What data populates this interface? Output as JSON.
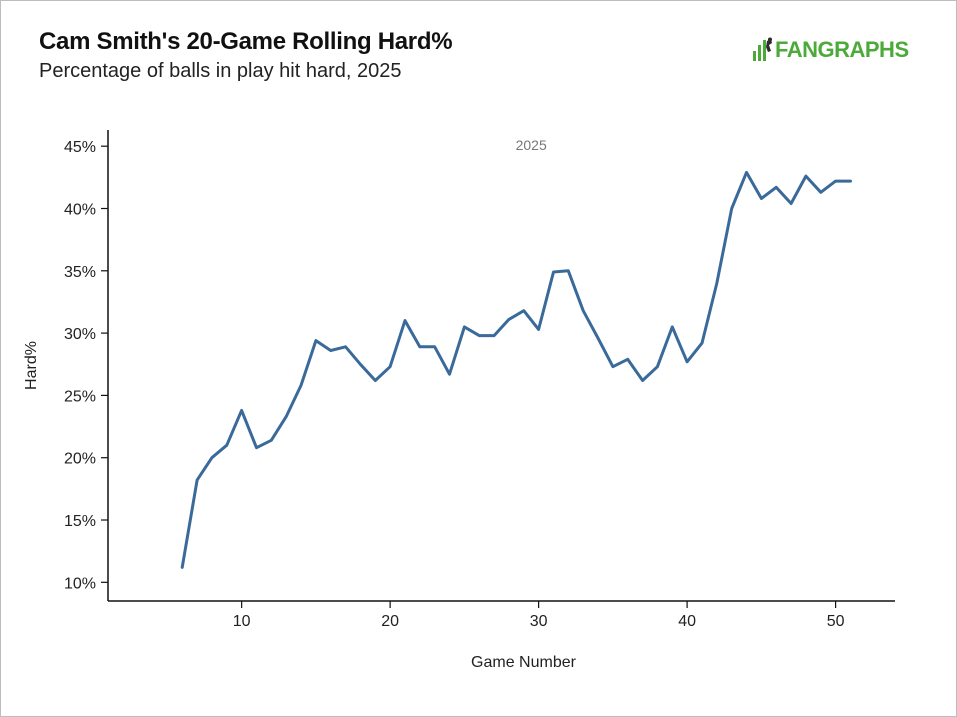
{
  "header": {
    "title": "Cam Smith's 20-Game Rolling Hard%",
    "subtitle": "Percentage of balls in play hit hard, 2025",
    "logo_text": "FANGRAPHS"
  },
  "colors": {
    "line": "#3a6a9a",
    "logo": "#4caa3a",
    "axis": "#111111"
  },
  "chart_data": {
    "type": "line",
    "xlabel": "Game Number",
    "ylabel": "Hard%",
    "xlim": [
      1,
      54
    ],
    "ylim": [
      8.5,
      46.3
    ],
    "x_ticks": [
      10,
      20,
      30,
      40,
      50
    ],
    "y_ticks": [
      10,
      15,
      20,
      25,
      30,
      35,
      40,
      45
    ],
    "y_tick_labels": [
      "10%",
      "15%",
      "20%",
      "25%",
      "30%",
      "35%",
      "40%",
      "45%"
    ],
    "annotation": "2025",
    "series": [
      {
        "x": [
          6,
          7,
          8,
          9,
          10,
          11,
          12,
          13,
          14,
          15,
          16,
          17,
          18,
          19,
          20,
          21,
          22,
          23,
          24,
          25,
          26,
          27,
          28,
          29,
          30,
          31,
          32,
          33,
          34,
          35,
          36,
          37,
          38,
          39,
          40,
          41,
          42,
          43,
          44,
          45,
          46,
          47,
          48,
          49,
          50,
          51
        ],
        "values": [
          11.2,
          18.2,
          20.0,
          21.0,
          23.8,
          20.8,
          21.4,
          23.3,
          25.8,
          29.4,
          28.6,
          28.9,
          27.5,
          26.2,
          27.3,
          31.0,
          28.9,
          28.9,
          26.7,
          30.5,
          29.8,
          29.8,
          31.1,
          31.8,
          30.3,
          34.9,
          35.0,
          31.8,
          29.6,
          27.3,
          27.9,
          26.2,
          27.3,
          30.5,
          27.7,
          29.2,
          34.0,
          40.0,
          42.9,
          40.8,
          41.7,
          40.4,
          42.6,
          41.3,
          42.2,
          42.2
        ]
      }
    ]
  }
}
